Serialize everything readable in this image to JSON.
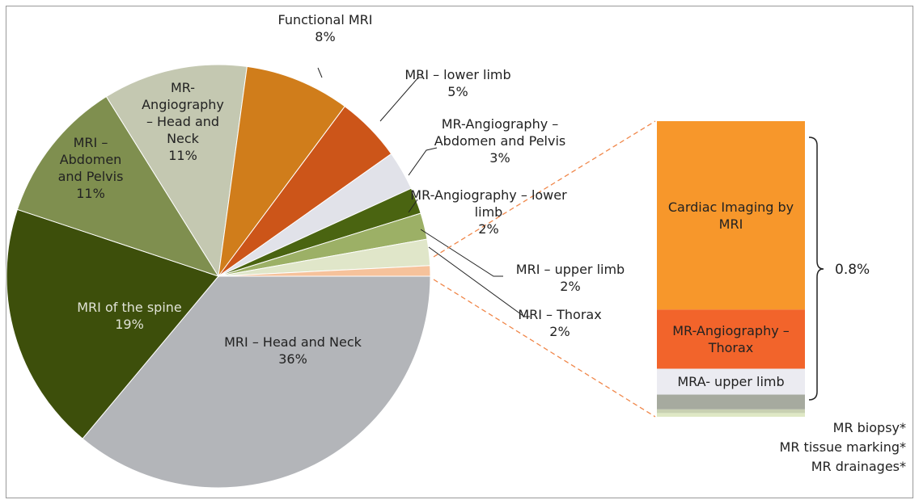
{
  "chart_data": {
    "type": "pie",
    "categories": [
      "MRI – Head and Neck",
      "MRI of the spine",
      "MRI – Abdomen and Pelvis",
      "MR-Angiography – Head and Neck",
      "Functional MRI",
      "MRI – lower limb",
      "MR-Angiography – Abdomen and Pelvis",
      "MR-Angiography – lower limb",
      "MRI – upper limb",
      "MRI – Thorax",
      null
    ],
    "values": [
      36,
      19,
      11,
      11,
      8,
      5,
      3,
      2,
      2,
      2,
      0.8
    ],
    "value_labels": [
      "36%",
      "19%",
      "11%",
      "11%",
      "8%",
      "5%",
      "3%",
      "2%",
      "2%",
      "2%",
      "0.8%"
    ],
    "colors": [
      "#b3b5b9",
      "#3d4f0b",
      "#7f8f4f",
      "#c4c8b1",
      "#d07d1b",
      "#cc5519",
      "#e1e2e9",
      "#4a6411",
      "#9cb066",
      "#e0e6c9",
      "#f6c29b"
    ],
    "breakdown": {
      "type": "bar",
      "categories": [
        "Cardiac Imaging by MRI",
        "MR-Angiography – Thorax",
        "MRA- upper limb",
        "MR biopsy*",
        "MR tissue marking*",
        "MR drainages*"
      ],
      "values": [
        0.51,
        0.16,
        0.07,
        0.04,
        0.01,
        0.01
      ],
      "colors": [
        "#f7972b",
        "#f2642b",
        "#ebebf1",
        "#a6aa9f",
        "#c9d1b2",
        "#dfe8c5"
      ]
    }
  }
}
